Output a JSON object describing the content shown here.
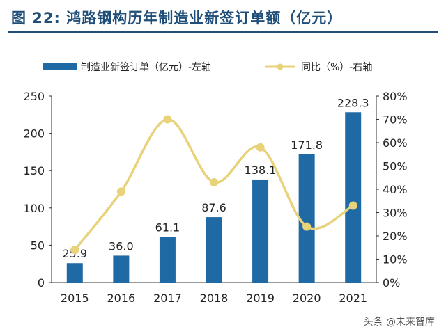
{
  "title": "图  22:  鸿路钢构历年制造业新签订单额（亿元）",
  "watermark": "头条 @未来智库",
  "colors": {
    "bar": "#1f6aa5",
    "line": "#e8d27a",
    "title": "#1f4e79"
  },
  "chart_data": {
    "type": "bar+line",
    "title": "鸿路钢构历年制造业新签订单额（亿元）",
    "categories": [
      "2015",
      "2016",
      "2017",
      "2018",
      "2019",
      "2020",
      "2021"
    ],
    "series": [
      {
        "name": "制造业新签订单（亿元）-左轴",
        "type": "bar",
        "axis": "left",
        "values": [
          25.9,
          36.0,
          61.1,
          87.6,
          138.1,
          171.8,
          228.3
        ],
        "labels": [
          "25.9",
          "36.0",
          "61.1",
          "87.6",
          "138.1",
          "171.8",
          "228.3"
        ]
      },
      {
        "name": "同比（%）-右轴",
        "type": "line",
        "axis": "right",
        "values": [
          14,
          39,
          70,
          43,
          58,
          24,
          33
        ]
      }
    ],
    "y_left": {
      "range": [
        0,
        250
      ],
      "ticks": [
        "0",
        "50",
        "100",
        "150",
        "200",
        "250"
      ]
    },
    "y_right": {
      "range": [
        0,
        80
      ],
      "ticks": [
        "0%",
        "10%",
        "20%",
        "30%",
        "40%",
        "50%",
        "60%",
        "70%",
        "80%"
      ]
    },
    "legend_position": "top",
    "grid": false
  }
}
